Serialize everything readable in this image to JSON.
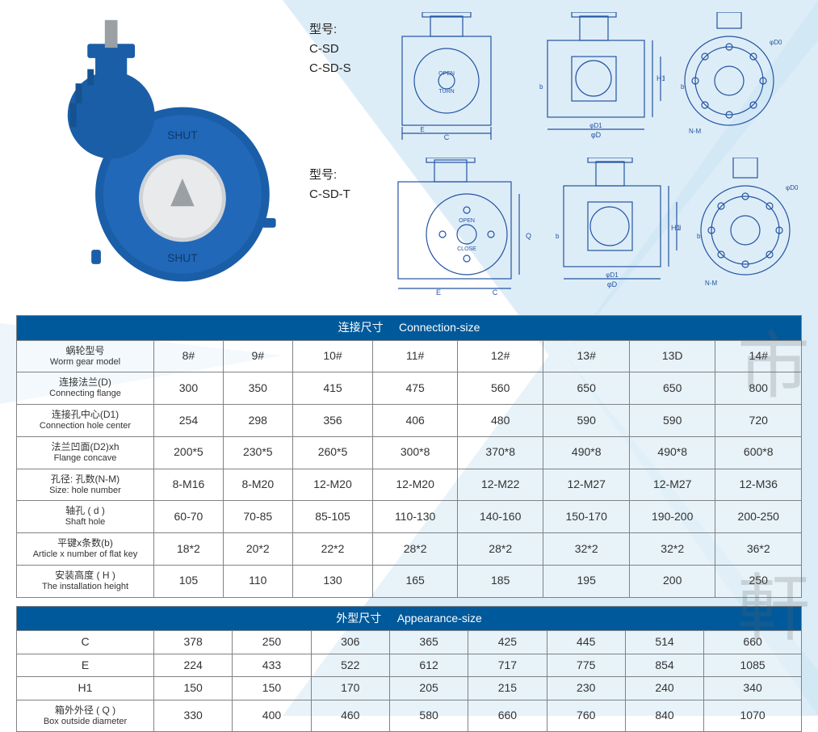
{
  "models": {
    "label1_cn": "型号:",
    "label1_line1": "C-SD",
    "label1_line2": "C-SD-S",
    "label2_cn": "型号:",
    "label2_line1": "C-SD-T"
  },
  "product_color": "#1a5ea8",
  "schematic_stroke": "#2454a3",
  "watermark": {
    "x_color": "#cfe6f3",
    "char_top": "市",
    "char_bottom": "軒"
  },
  "connection_table": {
    "title_cn": "连接尺寸",
    "title_en": "Connection-size",
    "columns": [
      "8#",
      "9#",
      "10#",
      "11#",
      "12#",
      "13#",
      "13D",
      "14#"
    ],
    "rows": [
      {
        "label_cn": "蜗轮型号",
        "label_en": "Worm gear model",
        "values": [
          "8#",
          "9#",
          "10#",
          "11#",
          "12#",
          "13#",
          "13D",
          "14#"
        ]
      },
      {
        "label_cn": "连接法兰(D)",
        "label_en": "Connecting flange",
        "values": [
          "300",
          "350",
          "415",
          "475",
          "560",
          "650",
          "650",
          "800"
        ]
      },
      {
        "label_cn": "连接孔中心(D1)",
        "label_en": "Connection hole center",
        "values": [
          "254",
          "298",
          "356",
          "406",
          "480",
          "590",
          "590",
          "720"
        ]
      },
      {
        "label_cn": "法兰凹面(D2)xh",
        "label_en": "Flange concave",
        "values": [
          "200*5",
          "230*5",
          "260*5",
          "300*8",
          "370*8",
          "490*8",
          "490*8",
          "600*8"
        ]
      },
      {
        "label_cn": "孔径: 孔数(N-M)",
        "label_en": "Size: hole number",
        "values": [
          "8-M16",
          "8-M20",
          "12-M20",
          "12-M20",
          "12-M22",
          "12-M27",
          "12-M27",
          "12-M36"
        ]
      },
      {
        "label_cn": "轴孔 ( d )",
        "label_en": "Shaft hole",
        "values": [
          "60-70",
          "70-85",
          "85-105",
          "110-130",
          "140-160",
          "150-170",
          "190-200",
          "200-250"
        ]
      },
      {
        "label_cn": "平键x条数(b)",
        "label_en": "Article x number of flat key",
        "values": [
          "18*2",
          "20*2",
          "22*2",
          "28*2",
          "28*2",
          "32*2",
          "32*2",
          "36*2"
        ]
      },
      {
        "label_cn": "安装高度 ( H )",
        "label_en": "The installation height",
        "values": [
          "105",
          "110",
          "130",
          "165",
          "185",
          "195",
          "200",
          "250"
        ]
      }
    ],
    "header_bg": "#00599B",
    "header_fg": "#ffffff",
    "border_color": "#808285"
  },
  "appearance_table": {
    "title_cn": "外型尺寸",
    "title_en": "Appearance-size",
    "rows": [
      {
        "label_cn": "C",
        "label_en": "",
        "values": [
          "378",
          "250",
          "306",
          "365",
          "425",
          "445",
          "514",
          "660"
        ]
      },
      {
        "label_cn": "E",
        "label_en": "",
        "values": [
          "224",
          "433",
          "522",
          "612",
          "717",
          "775",
          "854",
          "1085"
        ]
      },
      {
        "label_cn": "H1",
        "label_en": "",
        "values": [
          "150",
          "150",
          "170",
          "205",
          "215",
          "230",
          "240",
          "340"
        ]
      },
      {
        "label_cn": "箱外外径 ( Q )",
        "label_en": "Box outside diameter",
        "values": [
          "330",
          "400",
          "460",
          "580",
          "660",
          "760",
          "840",
          "1070"
        ]
      }
    ]
  },
  "dimension_labels": [
    "C",
    "E",
    "H",
    "H1",
    "Q",
    "φD",
    "φD1",
    "φD0",
    "b",
    "N-M"
  ]
}
